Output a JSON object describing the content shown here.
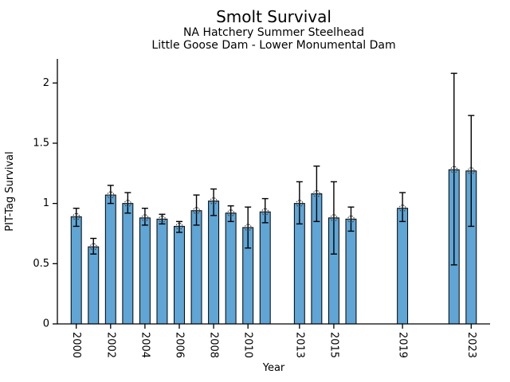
{
  "header": {
    "title": "Smolt Survival",
    "subtitle1": "NA Hatchery Summer Steelhead",
    "subtitle2": "Little Goose Dam - Lower Monumental Dam"
  },
  "chart_data": {
    "type": "bar",
    "title": "Smolt Survival",
    "subtitles": [
      "NA Hatchery Summer Steelhead",
      "Little Goose Dam - Lower Monumental Dam"
    ],
    "xlabel": "Year",
    "ylabel": "PIT-Tag Survival",
    "xlim": [
      1998.9,
      2024.1
    ],
    "ylim": [
      0,
      2.2
    ],
    "yticks": [
      0,
      0.5,
      1,
      1.5,
      2
    ],
    "ytick_labels": [
      "0",
      "0.5",
      "1",
      "1.5",
      "2"
    ],
    "xticks": [
      2000,
      2002,
      2004,
      2006,
      2008,
      2010,
      2013,
      2015,
      2019,
      2023
    ],
    "grid": false,
    "legend": null,
    "bar_width_years": 0.6,
    "bar_color": "#5fa5d5",
    "bar_edge_color": "#000000",
    "error_color": "#000000",
    "marker": "circle-plus-open",
    "marker_color": "#333333",
    "series": [
      {
        "name": "PIT-Tag Survival",
        "points": [
          {
            "year": 2000,
            "value": 0.89,
            "err_low": 0.81,
            "err_high": 0.96
          },
          {
            "year": 2001,
            "value": 0.64,
            "err_low": 0.58,
            "err_high": 0.71
          },
          {
            "year": 2002,
            "value": 1.07,
            "err_low": 1.0,
            "err_high": 1.15
          },
          {
            "year": 2003,
            "value": 1.0,
            "err_low": 0.92,
            "err_high": 1.09
          },
          {
            "year": 2004,
            "value": 0.88,
            "err_low": 0.82,
            "err_high": 0.96
          },
          {
            "year": 2005,
            "value": 0.87,
            "err_low": 0.83,
            "err_high": 0.91
          },
          {
            "year": 2006,
            "value": 0.81,
            "err_low": 0.76,
            "err_high": 0.85
          },
          {
            "year": 2007,
            "value": 0.94,
            "err_low": 0.82,
            "err_high": 1.07
          },
          {
            "year": 2008,
            "value": 1.02,
            "err_low": 0.9,
            "err_high": 1.12
          },
          {
            "year": 2009,
            "value": 0.92,
            "err_low": 0.85,
            "err_high": 0.98
          },
          {
            "year": 2010,
            "value": 0.8,
            "err_low": 0.63,
            "err_high": 0.97
          },
          {
            "year": 2011,
            "value": 0.93,
            "err_low": 0.84,
            "err_high": 1.04
          },
          {
            "year": 2013,
            "value": 1.0,
            "err_low": 0.83,
            "err_high": 1.18
          },
          {
            "year": 2014,
            "value": 1.08,
            "err_low": 0.85,
            "err_high": 1.31
          },
          {
            "year": 2015,
            "value": 0.88,
            "err_low": 0.58,
            "err_high": 1.18
          },
          {
            "year": 2016,
            "value": 0.87,
            "err_low": 0.77,
            "err_high": 0.97
          },
          {
            "year": 2019,
            "value": 0.96,
            "err_low": 0.85,
            "err_high": 1.09
          },
          {
            "year": 2022,
            "value": 1.28,
            "err_low": 0.49,
            "err_high": 2.08
          },
          {
            "year": 2023,
            "value": 1.27,
            "err_low": 0.81,
            "err_high": 1.73
          }
        ]
      }
    ]
  }
}
